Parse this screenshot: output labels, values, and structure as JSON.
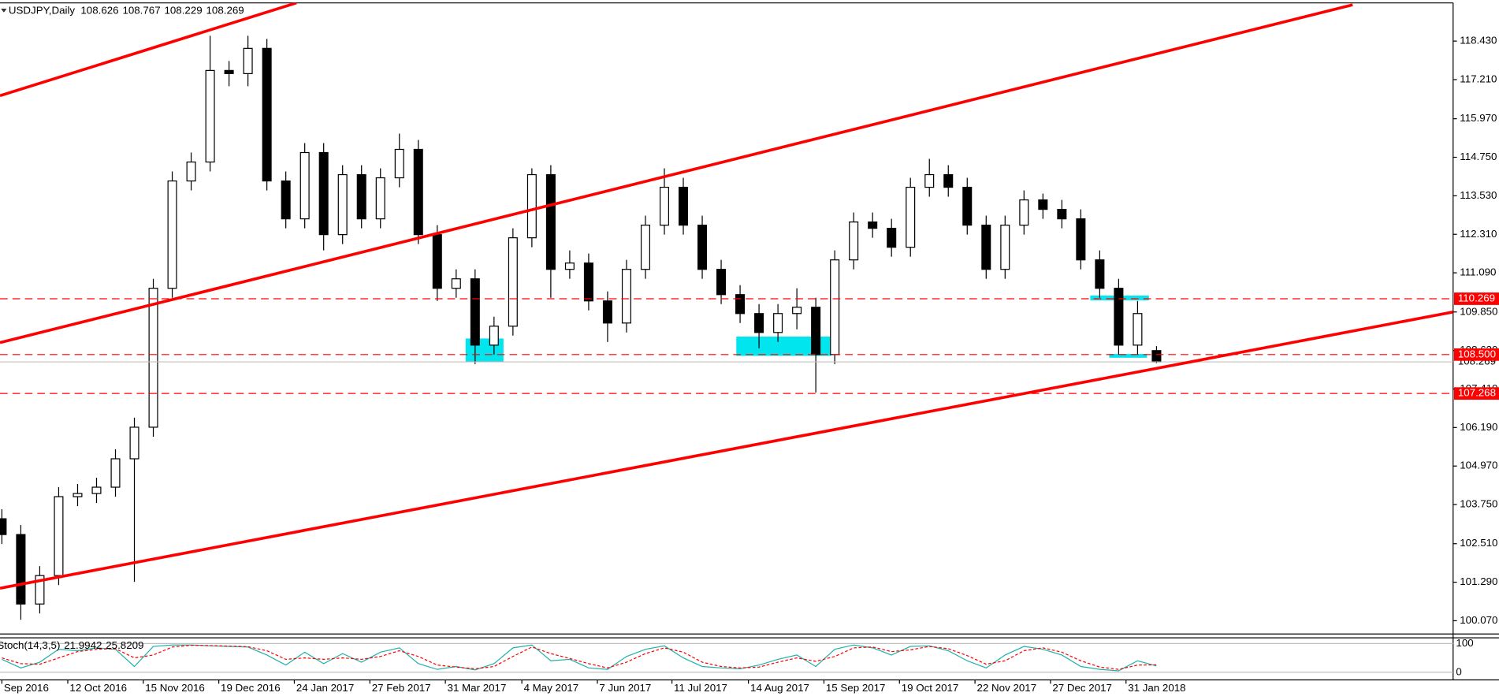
{
  "chart_data": {
    "type": "candlestick",
    "symbol_label": "USDJPY,Daily",
    "xlim": [
      -0.1,
      76.67
    ],
    "xticks": [
      {
        "value": 0,
        "label": "Sep 2016"
      },
      {
        "value": 3.48,
        "label": "12 Oct 2016"
      },
      {
        "value": 7.47,
        "label": "15 Nov 2016"
      },
      {
        "value": 11.46,
        "label": "19 Dec 2016"
      },
      {
        "value": 15.45,
        "label": "24 Jan 2017"
      },
      {
        "value": 19.44,
        "label": "27 Feb 2017"
      },
      {
        "value": 23.43,
        "label": "31 Mar 2017"
      },
      {
        "value": 27.47,
        "label": "4 May 2017"
      },
      {
        "value": 31.46,
        "label": "7 Jun 2017"
      },
      {
        "value": 35.4,
        "label": "11 Jul 2017"
      },
      {
        "value": 39.44,
        "label": "14 Aug 2017"
      },
      {
        "value": 43.43,
        "label": "15 Sep 2017"
      },
      {
        "value": 47.42,
        "label": "19 Oct 2017"
      },
      {
        "value": 51.41,
        "label": "22 Nov 2017"
      },
      {
        "value": 55.4,
        "label": "27 Dec 2017"
      },
      {
        "value": 59.39,
        "label": "31 Jan 2018"
      }
    ],
    "ylim": [
      99.65,
      119.64
    ],
    "yticks": [
      {
        "value": 118.43,
        "label": "118.430"
      },
      {
        "value": 117.21,
        "label": "117.210"
      },
      {
        "value": 115.97,
        "label": "115.970"
      },
      {
        "value": 114.75,
        "label": "114.750"
      },
      {
        "value": 113.53,
        "label": "113.530"
      },
      {
        "value": 112.31,
        "label": "112.310"
      },
      {
        "value": 111.09,
        "label": "111.090"
      },
      {
        "value": 109.85,
        "label": "109.850"
      },
      {
        "value": 108.63,
        "label": "108.630"
      },
      {
        "value": 107.41,
        "label": "107.410"
      },
      {
        "value": 106.19,
        "label": "106.190"
      },
      {
        "value": 104.97,
        "label": "104.970"
      },
      {
        "value": 103.75,
        "label": "103.750"
      },
      {
        "value": 102.51,
        "label": "102.510"
      },
      {
        "value": 101.29,
        "label": "101.290"
      },
      {
        "value": 100.07,
        "label": "100.070"
      }
    ],
    "up_color": "#ffffff",
    "down_color": "#000000",
    "wick_color": "#000000",
    "open": [
      103.3,
      102.8,
      100.6,
      101.5,
      104.0,
      104.1,
      104.3,
      105.2,
      106.2,
      110.6,
      114.0,
      114.6,
      117.5,
      117.4,
      118.2,
      114.0,
      112.8,
      114.9,
      112.3,
      114.2,
      112.8,
      114.1,
      115.0,
      112.3,
      110.6,
      110.9,
      108.8,
      109.4,
      112.2,
      114.2,
      111.2,
      111.4,
      110.2,
      109.5,
      111.2,
      112.6,
      113.8,
      112.6,
      111.2,
      110.4,
      109.8,
      109.2,
      109.8,
      110.0,
      108.5,
      111.5,
      112.7,
      112.5,
      111.9,
      113.8,
      114.2,
      113.8,
      112.6,
      111.2,
      112.6,
      113.4,
      113.1,
      112.8,
      111.5,
      110.6,
      108.8,
      108.626
    ],
    "high": [
      103.6,
      103.1,
      101.8,
      104.3,
      104.4,
      104.6,
      105.5,
      106.5,
      110.9,
      114.3,
      114.9,
      118.6,
      117.8,
      118.6,
      118.5,
      114.3,
      115.2,
      115.2,
      114.5,
      114.5,
      114.4,
      115.5,
      115.3,
      112.6,
      111.2,
      111.2,
      109.7,
      112.5,
      114.4,
      114.5,
      111.8,
      111.7,
      110.5,
      111.5,
      112.9,
      114.4,
      114.1,
      112.9,
      111.5,
      110.7,
      110.1,
      110.1,
      110.6,
      110.3,
      111.8,
      113.0,
      113.0,
      112.8,
      114.1,
      114.7,
      114.5,
      114.1,
      112.9,
      112.9,
      113.7,
      113.6,
      113.4,
      113.1,
      111.8,
      110.9,
      110.2,
      108.767
    ],
    "low": [
      102.5,
      100.1,
      100.3,
      101.2,
      103.7,
      103.8,
      104.0,
      101.3,
      105.9,
      110.3,
      113.7,
      114.3,
      117.0,
      117.0,
      113.7,
      112.5,
      112.5,
      111.8,
      112.0,
      112.5,
      112.5,
      113.8,
      112.0,
      110.2,
      110.3,
      108.2,
      108.5,
      109.1,
      111.9,
      110.3,
      110.9,
      109.9,
      108.9,
      109.2,
      110.9,
      112.3,
      112.3,
      110.9,
      110.1,
      109.5,
      108.7,
      108.9,
      109.3,
      107.3,
      108.2,
      111.2,
      112.2,
      111.6,
      111.6,
      113.5,
      113.5,
      112.3,
      110.9,
      110.9,
      112.3,
      112.8,
      112.5,
      111.2,
      110.3,
      108.5,
      108.5,
      108.229
    ],
    "close": [
      102.8,
      100.6,
      101.5,
      104.0,
      104.1,
      104.3,
      105.2,
      106.2,
      110.6,
      114.0,
      114.6,
      117.5,
      117.4,
      118.2,
      114.0,
      112.8,
      114.9,
      112.3,
      114.2,
      112.8,
      114.1,
      115.0,
      112.3,
      110.6,
      110.9,
      108.8,
      109.4,
      112.2,
      114.2,
      111.2,
      111.4,
      110.2,
      109.5,
      111.2,
      112.6,
      113.8,
      112.6,
      111.2,
      110.4,
      109.8,
      109.2,
      109.8,
      110.0,
      108.5,
      111.5,
      112.7,
      112.5,
      111.9,
      113.8,
      114.2,
      113.8,
      112.6,
      111.2,
      112.6,
      113.4,
      113.1,
      112.8,
      111.5,
      110.6,
      108.8,
      109.8,
      108.269
    ],
    "levels": [
      {
        "value": 110.269,
        "color": "#ff0000"
      },
      {
        "value": 108.5,
        "label": "108.500",
        "color": "#ff0000"
      },
      {
        "value": 107.268,
        "color": "#ff0000"
      }
    ],
    "current_price_color": "#c0c0c0",
    "trendlines": [
      {
        "color": "#ff0000",
        "points": [
          [
            -0.1,
            116.7
          ],
          [
            15.56,
            119.64
          ]
        ]
      },
      {
        "color": "#ff0000",
        "points": [
          [
            -0.1,
            108.88
          ],
          [
            71.36,
            119.58
          ]
        ]
      },
      {
        "color": "#ff0000",
        "points": [
          [
            -0.1,
            101.1
          ],
          [
            76.67,
            109.85
          ]
        ]
      }
    ],
    "zones": [
      {
        "color": "#00e5ee",
        "x": [
          24.5,
          26.5
        ],
        "price": [
          109.01,
          108.28
        ]
      },
      {
        "color": "#00e5ee",
        "x": [
          38.8,
          43.8
        ],
        "price": [
          109.07,
          108.46
        ]
      },
      {
        "color": "#00e5ee",
        "x": [
          57.5,
          60.6
        ],
        "price": [
          110.37,
          110.22
        ]
      },
      {
        "color": "#00e5ee",
        "x": [
          58.5,
          60.5
        ],
        "price": [
          108.52,
          108.4
        ]
      }
    ],
    "indicator": {
      "type": "stochastic",
      "name": "Stoch(14,3,5)",
      "ylim": [
        0,
        100
      ],
      "yticks": [
        100,
        0
      ],
      "main": {
        "color": "#20b2aa",
        "values": [
          45,
          15,
          35,
          80,
          75,
          85,
          80,
          20,
          90,
          95,
          95,
          92,
          90,
          88,
          60,
          25,
          70,
          30,
          65,
          35,
          70,
          85,
          30,
          10,
          20,
          8,
          30,
          85,
          95,
          40,
          45,
          15,
          10,
          55,
          80,
          92,
          50,
          20,
          15,
          12,
          25,
          45,
          60,
          20,
          80,
          95,
          85,
          60,
          90,
          92,
          75,
          40,
          15,
          60,
          90,
          80,
          60,
          20,
          10,
          5,
          40,
          21.9942
        ]
      },
      "signal": {
        "color": "#ff0000",
        "values": [
          50,
          30,
          28,
          50,
          72,
          80,
          82,
          50,
          60,
          88,
          94,
          93,
          91,
          89,
          75,
          45,
          50,
          45,
          50,
          45,
          55,
          75,
          55,
          25,
          18,
          12,
          20,
          55,
          88,
          65,
          48,
          30,
          15,
          35,
          65,
          85,
          70,
          35,
          20,
          15,
          18,
          35,
          50,
          38,
          55,
          85,
          88,
          72,
          78,
          90,
          82,
          58,
          28,
          40,
          75,
          85,
          70,
          40,
          18,
          10,
          25,
          25.8209
        ]
      }
    }
  }
}
